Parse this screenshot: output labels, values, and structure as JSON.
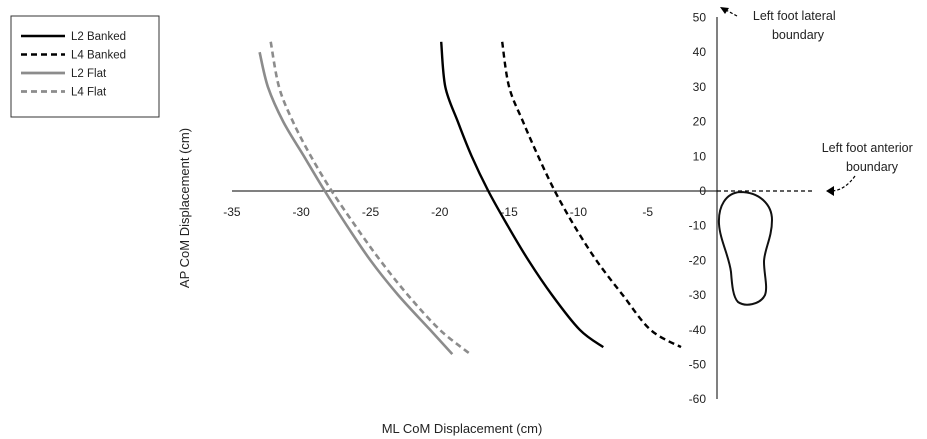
{
  "chart_data": {
    "type": "line",
    "title": "",
    "xlabel": "ML CoM Displacement (cm)",
    "ylabel": "AP CoM Displacement (cm)",
    "xlim": [
      -35,
      0
    ],
    "ylim": [
      -60,
      50
    ],
    "x_ticks": [
      -35,
      -30,
      -25,
      -20,
      -15,
      -10,
      -5
    ],
    "y_ticks": [
      50,
      40,
      30,
      20,
      10,
      0,
      -10,
      -20,
      -30,
      -40,
      -50,
      -60
    ],
    "grid": false,
    "legend_position": "top-left",
    "series": [
      {
        "name": "L2 Banked",
        "color": "#000000",
        "dash": "solid",
        "points": [
          [
            -19.9,
            43
          ],
          [
            -19.6,
            30
          ],
          [
            -18.7,
            20
          ],
          [
            -17.7,
            10
          ],
          [
            -16.5,
            0
          ],
          [
            -15.1,
            -10
          ],
          [
            -13.6,
            -20
          ],
          [
            -11.9,
            -30
          ],
          [
            -9.9,
            -40
          ],
          [
            -8.2,
            -45
          ]
        ]
      },
      {
        "name": "L4 Banked",
        "color": "#000000",
        "dash": "dashed",
        "points": [
          [
            -15.5,
            43
          ],
          [
            -15.0,
            30
          ],
          [
            -14.0,
            20
          ],
          [
            -12.9,
            10
          ],
          [
            -11.7,
            0
          ],
          [
            -10.3,
            -10
          ],
          [
            -8.7,
            -20
          ],
          [
            -6.8,
            -30
          ],
          [
            -4.8,
            -40
          ],
          [
            -2.6,
            -45
          ]
        ]
      },
      {
        "name": "L2 Flat",
        "color": "#8c8c8c",
        "dash": "solid",
        "points": [
          [
            -33.0,
            40
          ],
          [
            -32.4,
            30
          ],
          [
            -31.3,
            20
          ],
          [
            -29.8,
            10
          ],
          [
            -28.3,
            0
          ],
          [
            -26.7,
            -10
          ],
          [
            -25.0,
            -20
          ],
          [
            -23.0,
            -30
          ],
          [
            -20.7,
            -40
          ],
          [
            -19.1,
            -47
          ]
        ]
      },
      {
        "name": "L4 Flat",
        "color": "#8c8c8c",
        "dash": "dashed",
        "points": [
          [
            -32.2,
            43
          ],
          [
            -31.6,
            30
          ],
          [
            -30.6,
            20
          ],
          [
            -29.3,
            10
          ],
          [
            -27.8,
            0
          ],
          [
            -26.1,
            -10
          ],
          [
            -24.3,
            -20
          ],
          [
            -22.3,
            -30
          ],
          [
            -20.0,
            -40
          ],
          [
            -17.8,
            -47
          ]
        ]
      }
    ],
    "annotations": [
      {
        "text_lines": [
          "Left foot lateral",
          "boundary"
        ]
      },
      {
        "text_lines": [
          "Left foot anterior",
          "boundary"
        ]
      }
    ]
  }
}
